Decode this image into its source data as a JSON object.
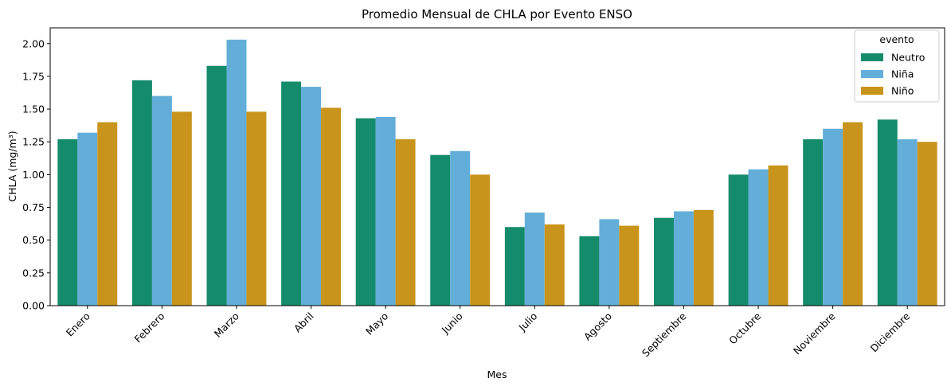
{
  "chart_data": {
    "type": "bar",
    "title": "Promedio Mensual de CHLA por Evento ENSO",
    "xlabel": "Mes",
    "ylabel": "CHLA (mg/m³)",
    "ylim": [
      0,
      2.12
    ],
    "yticks": [
      "0.00",
      "0.25",
      "0.50",
      "0.75",
      "1.00",
      "1.25",
      "1.50",
      "1.75",
      "2.00"
    ],
    "categories": [
      "Enero",
      "Febrero",
      "Marzo",
      "Abril",
      "Mayo",
      "Junio",
      "Julio",
      "Agosto",
      "Septiembre",
      "Octubre",
      "Noviembre",
      "Diciembre"
    ],
    "legend_title": "evento",
    "legend_position": "top-right",
    "grid": false,
    "series": [
      {
        "name": "Neutro",
        "color": "#148b6b",
        "values": [
          1.27,
          1.72,
          1.83,
          1.71,
          1.43,
          1.15,
          0.6,
          0.53,
          0.67,
          1.0,
          1.27,
          1.42
        ]
      },
      {
        "name": "Niña",
        "color": "#63aed9",
        "values": [
          1.32,
          1.6,
          2.03,
          1.67,
          1.44,
          1.18,
          0.71,
          0.66,
          0.72,
          1.04,
          1.35,
          1.27
        ]
      },
      {
        "name": "Niño",
        "color": "#c9941b",
        "values": [
          1.4,
          1.48,
          1.48,
          1.51,
          1.27,
          1.0,
          0.62,
          0.61,
          0.73,
          1.07,
          1.4,
          1.25
        ]
      }
    ]
  }
}
